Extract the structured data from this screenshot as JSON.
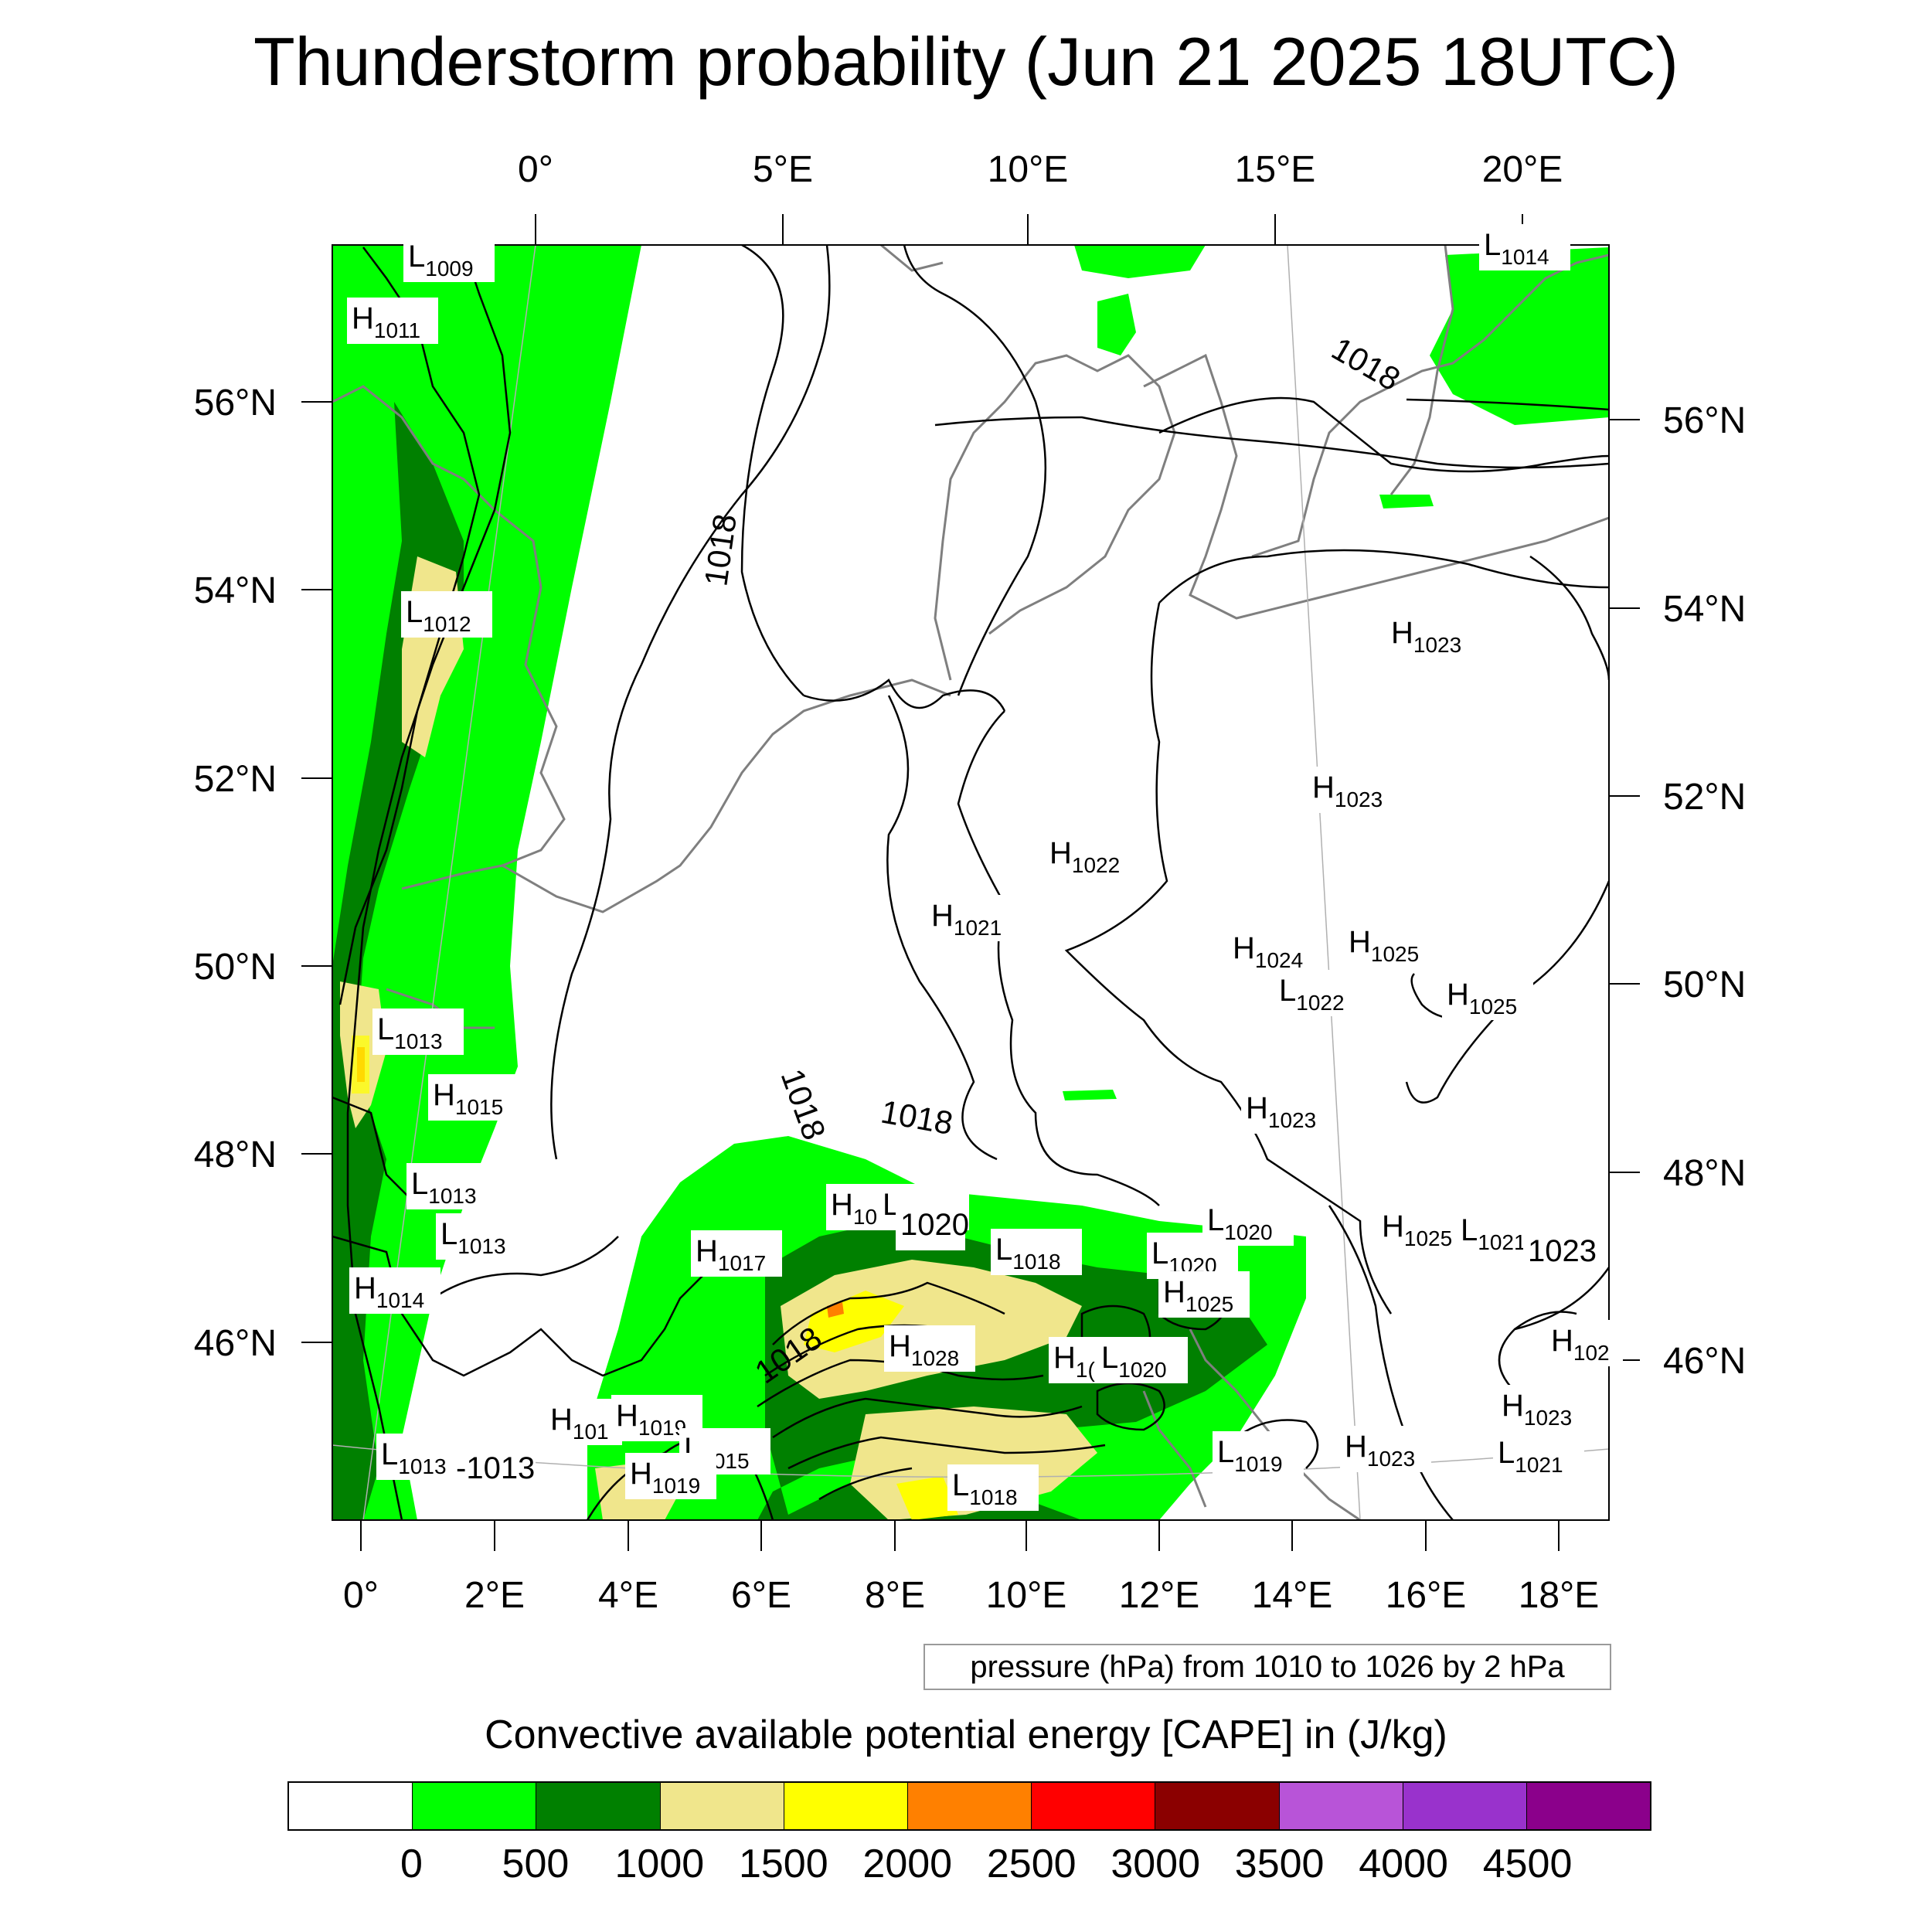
{
  "title": "Thunderstorm probability (Jun 21 2025 18UTC)",
  "top_axis_labels": [
    "0°",
    "5°E",
    "10°E",
    "15°E",
    "20°E"
  ],
  "bottom_axis_labels": [
    "0°",
    "2°E",
    "4°E",
    "6°E",
    "8°E",
    "10°E",
    "12°E",
    "14°E",
    "16°E",
    "18°E"
  ],
  "left_axis_labels": [
    "56°N",
    "54°N",
    "52°N",
    "50°N",
    "48°N",
    "46°N"
  ],
  "right_axis_labels": [
    "56°N",
    "54°N",
    "52°N",
    "50°N",
    "48°N",
    "46°N"
  ],
  "contour_info": "pressure (hPa) from 1010 to 1026 by 2 hPa",
  "cape_title": "Convective available potential energy [CAPE] in (J/kg)",
  "colorbar": {
    "colors": [
      "#ffffff",
      "#00ff00",
      "#008000",
      "#f0e68c",
      "#ffff00",
      "#ff8000",
      "#ff0000",
      "#8b0000",
      "#b854d8",
      "#9932cc",
      "#8b008b"
    ],
    "labels": [
      "0",
      "500",
      "1000",
      "1500",
      "2000",
      "2500",
      "3000",
      "3500",
      "4000",
      "4500"
    ]
  },
  "contour_labels": [
    "1018",
    "1018",
    "1018",
    "1018",
    "1018"
  ],
  "pressure_centers": [
    {
      "type": "L",
      "value": "1009"
    },
    {
      "type": "H",
      "value": "1011"
    },
    {
      "type": "L",
      "value": "1012"
    },
    {
      "type": "L",
      "value": "1013"
    },
    {
      "type": "H",
      "value": "1015"
    },
    {
      "type": "L",
      "value": "1013"
    },
    {
      "type": "L",
      "value": "1013"
    },
    {
      "type": "H",
      "value": "1014"
    },
    {
      "type": "L",
      "value": "1013"
    },
    {
      "type": "",
      "value": "-1013"
    },
    {
      "type": "H",
      "value": "101"
    },
    {
      "type": "H",
      "value": "1019"
    },
    {
      "type": "L",
      "value": "1015"
    },
    {
      "type": "H",
      "value": "1019"
    },
    {
      "type": "H",
      "value": "1017"
    },
    {
      "type": "H",
      "value": "10"
    },
    {
      "type": "L",
      "value": "1017"
    },
    {
      "type": "",
      "value": "1020"
    },
    {
      "type": "L",
      "value": "1018"
    },
    {
      "type": "H",
      "value": "1028"
    },
    {
      "type": "L",
      "value": "1018"
    },
    {
      "type": "H",
      "value": "1("
    },
    {
      "type": "L",
      "value": "1020"
    },
    {
      "type": "L",
      "value": "1020"
    },
    {
      "type": "L",
      "value": "1020"
    },
    {
      "type": "H",
      "value": "1025"
    },
    {
      "type": "L",
      "value": "1019"
    },
    {
      "type": "H",
      "value": "1021"
    },
    {
      "type": "H",
      "value": "1022"
    },
    {
      "type": "H",
      "value": "1023"
    },
    {
      "type": "H",
      "value": "1023"
    },
    {
      "type": "H",
      "value": "1024"
    },
    {
      "type": "L",
      "value": "1022"
    },
    {
      "type": "H",
      "value": "1025"
    },
    {
      "type": "H",
      "value": "1025"
    },
    {
      "type": "H",
      "value": "1023"
    },
    {
      "type": "H",
      "value": "1025"
    },
    {
      "type": "L",
      "value": "1021"
    },
    {
      "type": "",
      "value": "1023"
    },
    {
      "type": "H",
      "value": "102"
    },
    {
      "type": "H",
      "value": "1023"
    },
    {
      "type": "H",
      "value": "1023"
    },
    {
      "type": "L",
      "value": "1021"
    },
    {
      "type": "L",
      "value": "1014"
    }
  ]
}
